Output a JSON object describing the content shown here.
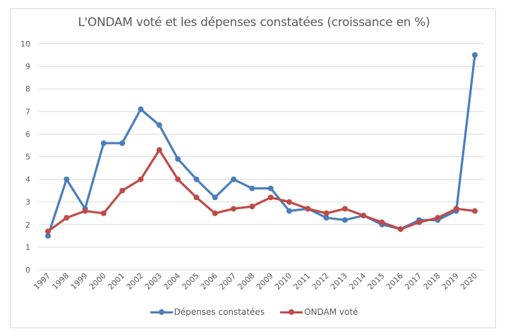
{
  "chart_data": {
    "type": "line",
    "title": "L'ONDAM voté et les dépenses constatées (croissance en %)",
    "xlabel": "",
    "ylabel": "",
    "ylim": [
      0,
      10
    ],
    "yticks": [
      "0",
      "1",
      "2",
      "3",
      "4",
      "5",
      "6",
      "7",
      "8",
      "9",
      "10"
    ],
    "grid": true,
    "legend_position": "bottom",
    "categories": [
      "1997",
      "1998",
      "1999",
      "2000",
      "2001",
      "2002",
      "2003",
      "2004",
      "2005",
      "2006",
      "2007",
      "2008",
      "2009",
      "2010",
      "2011",
      "2012",
      "2013",
      "2014",
      "2015",
      "2016",
      "2017",
      "2018",
      "2019",
      "2020"
    ],
    "series": [
      {
        "name": "Dépenses constatées",
        "color": "#4a7ebb",
        "values": [
          1.5,
          4.0,
          2.7,
          5.6,
          5.6,
          7.1,
          6.4,
          4.9,
          4.0,
          3.2,
          4.0,
          3.6,
          3.6,
          2.6,
          2.7,
          2.3,
          2.2,
          2.4,
          2.0,
          1.8,
          2.2,
          2.2,
          2.6,
          9.5
        ]
      },
      {
        "name": "ONDAM voté",
        "color": "#be4b48",
        "values": [
          1.7,
          2.3,
          2.6,
          2.5,
          3.5,
          4.0,
          5.3,
          4.0,
          3.2,
          2.5,
          2.7,
          2.8,
          3.2,
          3.0,
          2.7,
          2.5,
          2.7,
          2.4,
          2.1,
          1.8,
          2.1,
          2.3,
          2.7,
          2.6
        ]
      }
    ]
  }
}
